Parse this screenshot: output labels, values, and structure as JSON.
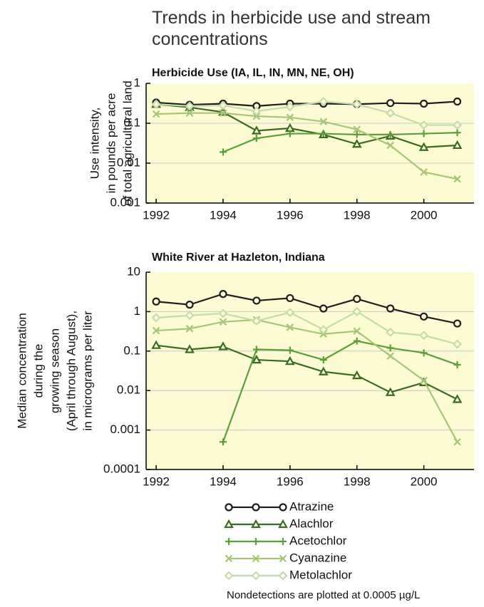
{
  "title": "Trends in herbicide use and stream concentrations",
  "note": "Nondetections are plotted at 0.0005 µg/L",
  "chart_data": [
    {
      "type": "line",
      "title": "Herbicide Use (IA, IL, IN, MN, NE, OH)",
      "ylabel": [
        "Use intensity,",
        "in pounds per acre",
        "of total agricultural land"
      ],
      "log_y": true,
      "grid": true,
      "background": "#fcfbd3",
      "x": [
        1992,
        1993,
        1994,
        1995,
        1996,
        1997,
        1998,
        1999,
        2000,
        2001
      ],
      "xlim": [
        1991.7,
        2001.5
      ],
      "xticks": [
        1992,
        1994,
        1996,
        1998,
        2000
      ],
      "ylim": [
        0.001,
        1
      ],
      "yticks": [
        0.001,
        0.01,
        0.1,
        1
      ],
      "series": [
        {
          "name": "Atrazine",
          "color": "#1e1e1e",
          "marker": "circle",
          "values": [
            0.33,
            0.29,
            0.31,
            0.27,
            0.31,
            0.31,
            0.3,
            0.32,
            0.31,
            0.35
          ]
        },
        {
          "name": "Alachlor",
          "color": "#3a6b21",
          "marker": "triangle",
          "values": [
            0.3,
            0.25,
            0.19,
            0.065,
            0.075,
            0.052,
            0.03,
            0.048,
            0.025,
            0.028
          ]
        },
        {
          "name": "Acetochlor",
          "color": "#5a9f38",
          "marker": "plus",
          "values": [
            null,
            null,
            0.019,
            0.042,
            0.055,
            0.055,
            0.052,
            0.052,
            0.055,
            0.058
          ]
        },
        {
          "name": "Cyanazine",
          "color": "#a6c676",
          "marker": "x",
          "values": [
            0.17,
            0.18,
            0.18,
            0.15,
            0.14,
            0.11,
            0.07,
            0.028,
            0.006,
            0.004
          ]
        },
        {
          "name": "Metolachlor",
          "color": "#c5dbae",
          "marker": "diamond",
          "values": [
            0.3,
            0.27,
            0.28,
            0.2,
            0.26,
            0.35,
            0.3,
            0.18,
            0.09,
            0.09
          ]
        }
      ]
    },
    {
      "type": "line",
      "title": "White River at Hazleton, Indiana",
      "ylabel": [
        "Median concentration",
        "during the",
        "growing season",
        "(April through August),",
        "in micrograms per liter"
      ],
      "log_y": true,
      "grid": true,
      "background": "#fcfbd3",
      "x": [
        1992,
        1993,
        1994,
        1995,
        1996,
        1997,
        1998,
        1999,
        2000,
        2001
      ],
      "xlim": [
        1991.7,
        2001.5
      ],
      "xticks": [
        1992,
        1994,
        1996,
        1998,
        2000
      ],
      "ylim": [
        0.0001,
        10
      ],
      "yticks": [
        0.0001,
        0.001,
        0.01,
        0.1,
        1,
        10
      ],
      "series": [
        {
          "name": "Atrazine",
          "color": "#1e1e1e",
          "marker": "circle",
          "values": [
            1.8,
            1.5,
            2.8,
            1.9,
            2.2,
            1.2,
            2.1,
            1.2,
            0.75,
            0.5
          ]
        },
        {
          "name": "Alachlor",
          "color": "#3a6b21",
          "marker": "triangle",
          "values": [
            0.14,
            0.11,
            0.13,
            0.06,
            0.055,
            0.03,
            0.024,
            0.009,
            0.016,
            0.006
          ]
        },
        {
          "name": "Acetochlor",
          "color": "#5a9f38",
          "marker": "plus",
          "values": [
            null,
            null,
            0.0005,
            0.11,
            0.105,
            0.06,
            0.18,
            0.12,
            0.09,
            0.045
          ]
        },
        {
          "name": "Cyanazine",
          "color": "#a6c676",
          "marker": "x",
          "values": [
            0.33,
            0.37,
            0.55,
            0.62,
            0.4,
            0.27,
            0.32,
            0.075,
            0.018,
            0.0005
          ]
        },
        {
          "name": "Metolachlor",
          "color": "#c5dbae",
          "marker": "diamond",
          "values": [
            0.7,
            0.8,
            0.9,
            0.58,
            0.95,
            0.35,
            1.0,
            0.3,
            0.25,
            0.15
          ]
        }
      ]
    }
  ]
}
